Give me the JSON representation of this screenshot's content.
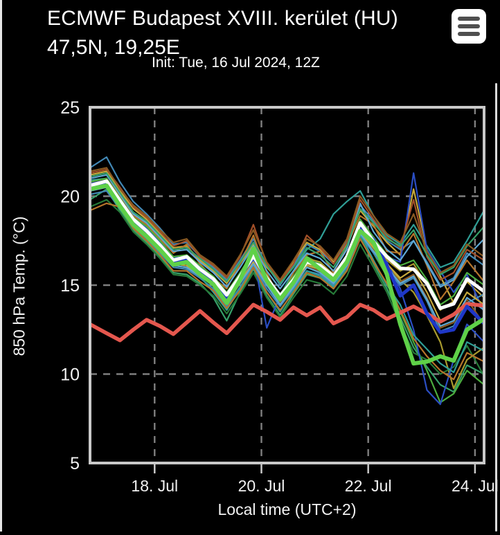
{
  "header": {
    "title_line1": "ECMWF Budapest XVIII. kerület (HU)",
    "title_line2": "47,5N, 19,25E",
    "init_line": "Init: Tue, 16 Jul 2024, 12Z",
    "menu_icon": "hamburger-icon"
  },
  "colors": {
    "background": "#000000",
    "frame": "#c9c9c9",
    "grid": "#7f7f7f",
    "tick_text": "#f2f2f2",
    "mean_white": "#ffffff",
    "control_green": "#5fd148",
    "member_blue_bold": "#1e37c8",
    "climatology_red": "#e4574e",
    "menu_button_bg": "#ffffff",
    "menu_button_bars": "#4f4f4f"
  },
  "chart_data": {
    "type": "line",
    "title": "",
    "xlabel": "Local time (UTC+2)",
    "ylabel": "850 hPa Temp. (°C)",
    "x_unit": "day of July 2024 (local time)",
    "xlim": [
      16.79,
      24.17
    ],
    "ylim": [
      5,
      25
    ],
    "grid": "dashed gray on black, legend none",
    "x_ticks": [
      {
        "value": 18,
        "label": "18. Jul"
      },
      {
        "value": 20,
        "label": "20. Jul"
      },
      {
        "value": 22,
        "label": "22. Jul"
      },
      {
        "value": 24,
        "label": "24. Jul"
      }
    ],
    "y_ticks": [
      25,
      20,
      15,
      10,
      5
    ],
    "x": [
      16.79,
      17.1,
      17.35,
      17.6,
      17.85,
      18.1,
      18.35,
      18.6,
      18.85,
      19.1,
      19.35,
      19.6,
      19.85,
      20.1,
      20.35,
      20.6,
      20.85,
      21.1,
      21.35,
      21.6,
      21.85,
      22.1,
      22.35,
      22.6,
      22.85,
      23.1,
      23.35,
      23.6,
      23.85,
      24.17
    ],
    "series": [
      {
        "name": "climatology-line",
        "color": "#e4574e",
        "width": 5.5,
        "values": [
          12.8,
          12.3,
          11.9,
          12.5,
          13.05,
          12.7,
          12.25,
          12.9,
          13.55,
          12.9,
          12.3,
          13.1,
          13.9,
          13.5,
          13.05,
          13.75,
          13.3,
          13.75,
          12.85,
          13.2,
          13.9,
          13.6,
          13.1,
          13.45,
          13.8,
          13.4,
          12.95,
          13.35,
          13.95,
          13.85
        ]
      },
      {
        "name": "secondary-member-line",
        "color": "#1e37c8",
        "width": 5,
        "values": [
          20.5,
          20.7,
          19.55,
          18.55,
          17.9,
          17.1,
          16.3,
          16.45,
          15.75,
          15.2,
          14.25,
          15.4,
          16.8,
          15.3,
          14.3,
          15.2,
          16.4,
          16.0,
          15.4,
          16.45,
          18.2,
          17.55,
          16.1,
          14.4,
          15.0,
          13.4,
          12.35,
          12.5,
          13.8,
          12.85
        ]
      },
      {
        "name": "ensemble-mean-line",
        "color": "#ffffff",
        "width": 5,
        "values": [
          20.6,
          20.85,
          19.75,
          18.7,
          18.05,
          17.25,
          16.4,
          16.6,
          15.9,
          15.35,
          14.45,
          15.5,
          16.65,
          15.4,
          14.4,
          15.3,
          16.3,
          16.1,
          15.5,
          16.6,
          18.5,
          17.45,
          16.6,
          15.95,
          15.9,
          15.1,
          13.7,
          13.95,
          15.35,
          14.65
        ]
      },
      {
        "name": "control-run-line",
        "color": "#5fd148",
        "width": 6,
        "values": [
          20.4,
          20.6,
          19.45,
          18.4,
          17.75,
          17.0,
          16.15,
          16.3,
          15.6,
          15.05,
          14.0,
          15.3,
          17.05,
          15.25,
          14.2,
          15.15,
          16.5,
          15.9,
          15.3,
          16.3,
          18.05,
          17.4,
          15.6,
          12.8,
          10.6,
          10.7,
          11.0,
          10.75,
          12.5,
          13.1
        ]
      }
    ],
    "ensemble_members": [
      {
        "color": "#4288b5",
        "values": [
          21.6,
          22.2,
          20.8,
          19.7,
          19.0,
          18.2,
          17.3,
          17.4,
          16.6,
          16.0,
          15.3,
          16.4,
          17.6,
          16.1,
          15.0,
          16.1,
          17.3,
          16.9,
          16.2,
          17.5,
          19.5,
          18.6,
          17.5,
          17.0,
          17.5,
          16.3,
          15.0,
          15.4,
          16.8,
          16.1
        ]
      },
      {
        "color": "#2f9e96",
        "values": [
          20.9,
          21.0,
          19.9,
          18.8,
          18.2,
          17.4,
          16.5,
          16.5,
          16.0,
          15.4,
          14.4,
          15.6,
          16.8,
          15.5,
          14.4,
          15.8,
          17.0,
          17.6,
          19.0,
          19.7,
          20.3,
          18.9,
          17.8,
          17.3,
          18.4,
          17.2,
          16.0,
          16.3,
          17.5,
          19.2
        ]
      },
      {
        "color": "#36a069",
        "values": [
          19.8,
          20.4,
          19.2,
          18.1,
          17.4,
          16.6,
          15.7,
          15.6,
          15.1,
          14.3,
          13.0,
          14.6,
          15.9,
          14.4,
          13.3,
          14.5,
          15.6,
          15.4,
          14.8,
          15.9,
          17.7,
          16.2,
          14.8,
          13.2,
          11.5,
          10.4,
          9.4,
          9.0,
          10.5,
          10.0
        ]
      },
      {
        "color": "#a89a2e",
        "values": [
          20.5,
          20.7,
          19.7,
          18.6,
          18.0,
          17.2,
          16.3,
          16.3,
          15.8,
          15.2,
          14.2,
          15.3,
          16.5,
          15.2,
          14.2,
          15.1,
          16.2,
          15.9,
          15.3,
          16.4,
          18.2,
          17.2,
          16.1,
          15.3,
          14.6,
          13.3,
          11.8,
          9.2,
          10.8,
          11.5
        ]
      },
      {
        "color": "#c6a93c",
        "values": [
          21.2,
          21.4,
          20.3,
          19.3,
          18.7,
          17.9,
          17.1,
          17.2,
          16.4,
          15.8,
          15.1,
          16.2,
          17.3,
          16.0,
          15.2,
          16.3,
          17.4,
          17.0,
          16.3,
          17.3,
          19.2,
          18.3,
          17.4,
          16.7,
          20.4,
          17.0,
          15.5,
          14.0,
          15.2,
          14.3
        ]
      },
      {
        "color": "#b5742b",
        "values": [
          20.8,
          21.0,
          20.0,
          18.9,
          18.4,
          17.6,
          16.8,
          17.3,
          16.2,
          15.4,
          14.8,
          16.2,
          17.8,
          15.7,
          14.2,
          15.7,
          16.7,
          16.9,
          15.7,
          17.2,
          18.9,
          18.4,
          16.9,
          16.8,
          17.9,
          16.1,
          14.2,
          15.2,
          16.4,
          15.2
        ]
      },
      {
        "color": "#8a5a22",
        "values": [
          20.3,
          20.5,
          19.5,
          18.5,
          17.8,
          17.0,
          16.2,
          16.1,
          15.6,
          15.0,
          14.0,
          15.1,
          16.3,
          15.0,
          14.0,
          15.0,
          16.0,
          15.8,
          15.2,
          16.2,
          18.0,
          17.0,
          16.0,
          15.2,
          15.6,
          14.3,
          12.6,
          12.9,
          14.2,
          12.8
        ]
      },
      {
        "color": "#4cae3f",
        "values": [
          20.6,
          20.8,
          19.8,
          18.7,
          18.1,
          17.3,
          16.4,
          16.4,
          15.9,
          15.3,
          14.3,
          15.4,
          16.6,
          15.3,
          14.3,
          15.3,
          16.4,
          16.1,
          15.5,
          16.5,
          18.3,
          16.8,
          15.5,
          13.5,
          11.8,
          10.2,
          8.4,
          8.9,
          10.2,
          9.4
        ]
      },
      {
        "color": "#267a38",
        "values": [
          19.4,
          19.8,
          19.1,
          18.0,
          17.3,
          16.5,
          15.6,
          15.5,
          15.0,
          14.4,
          13.4,
          14.5,
          15.7,
          14.3,
          13.2,
          14.3,
          15.3,
          15.1,
          14.5,
          15.5,
          17.3,
          16.0,
          14.6,
          12.8,
          11.2,
          10.8,
          10.0,
          10.4,
          11.6,
          9.9
        ]
      },
      {
        "color": "#2b4ec4",
        "values": [
          20.7,
          20.9,
          19.9,
          18.8,
          18.2,
          17.4,
          16.6,
          16.5,
          16.0,
          15.4,
          14.5,
          15.6,
          16.7,
          12.6,
          14.4,
          15.4,
          16.5,
          16.2,
          15.6,
          16.6,
          18.6,
          17.7,
          16.6,
          16.3,
          21.3,
          17.0,
          15.8,
          14.6,
          15.6,
          13.5
        ]
      },
      {
        "color": "#2b4ec4",
        "values": [
          20.4,
          20.6,
          19.6,
          18.6,
          17.9,
          17.1,
          16.3,
          16.2,
          15.7,
          15.1,
          14.1,
          15.2,
          16.4,
          15.1,
          14.1,
          15.1,
          16.1,
          15.9,
          15.3,
          16.3,
          18.1,
          17.3,
          16.3,
          14.8,
          12.5,
          9.1,
          8.3,
          10.8,
          12.8,
          11.8
        ]
      },
      {
        "color": "#5fa8d3",
        "values": [
          21.0,
          21.2,
          20.1,
          19.0,
          18.5,
          17.7,
          16.9,
          17.0,
          16.3,
          15.7,
          14.9,
          16.0,
          17.2,
          15.8,
          14.8,
          15.8,
          16.8,
          16.5,
          15.8,
          17.0,
          19.6,
          18.0,
          17.0,
          16.4,
          17.5,
          16.2,
          14.9,
          15.3,
          16.6,
          17.6
        ]
      },
      {
        "color": "#a34f28",
        "values": [
          21.3,
          21.5,
          20.5,
          19.4,
          18.8,
          18.0,
          17.2,
          17.5,
          16.6,
          16.1,
          15.4,
          16.6,
          18.4,
          16.2,
          15.2,
          16.2,
          17.8,
          17.1,
          16.2,
          17.4,
          19.8,
          18.7,
          17.7,
          17.1,
          19.8,
          16.6,
          15.3,
          15.7,
          17.0,
          16.4
        ]
      },
      {
        "color": "#4288b5",
        "values": [
          20.1,
          20.3,
          19.3,
          18.3,
          17.6,
          16.8,
          16.0,
          15.9,
          15.4,
          14.8,
          13.8,
          14.9,
          16.1,
          14.8,
          13.8,
          14.8,
          15.8,
          15.6,
          15.0,
          16.0,
          17.8,
          16.8,
          15.8,
          15.0,
          15.4,
          14.1,
          12.4,
          12.7,
          14.0,
          14.5
        ]
      },
      {
        "color": "#2f9e96",
        "values": [
          20.5,
          20.6,
          19.4,
          18.3,
          17.7,
          16.9,
          16.1,
          16.0,
          15.5,
          14.6,
          13.6,
          14.8,
          16.0,
          14.6,
          13.5,
          14.7,
          15.8,
          15.5,
          14.9,
          16.1,
          17.9,
          16.4,
          15.0,
          13.9,
          12.2,
          11.4,
          10.6,
          10.1,
          11.8,
          11.3
        ]
      },
      {
        "color": "#c6a93c",
        "values": [
          20.4,
          20.6,
          19.6,
          18.4,
          17.8,
          17.0,
          16.2,
          16.1,
          15.6,
          15.0,
          14.1,
          15.2,
          16.3,
          15.1,
          14.1,
          15.0,
          16.1,
          15.9,
          15.2,
          16.2,
          18.0,
          17.1,
          16.2,
          15.4,
          15.9,
          14.6,
          13.0,
          13.3,
          14.6,
          13.9
        ]
      },
      {
        "color": "#4cae3f",
        "values": [
          20.8,
          21.0,
          19.9,
          18.8,
          18.3,
          17.5,
          16.6,
          16.7,
          16.1,
          15.5,
          14.6,
          15.7,
          16.9,
          15.5,
          14.5,
          15.5,
          16.6,
          16.2,
          15.6,
          16.7,
          18.7,
          17.7,
          16.7,
          16.1,
          16.4,
          15.3,
          13.9,
          14.4,
          15.7,
          15.0
        ]
      },
      {
        "color": "#b5742b",
        "values": [
          19.2,
          19.6,
          19.4,
          18.2,
          17.5,
          16.7,
          15.8,
          15.8,
          15.2,
          14.7,
          13.7,
          14.7,
          16.0,
          14.6,
          13.6,
          14.6,
          15.7,
          15.4,
          14.8,
          15.8,
          17.6,
          16.3,
          15.1,
          13.6,
          12.0,
          11.0,
          10.2,
          9.7,
          11.2,
          10.7
        ]
      },
      {
        "color": "#36a069",
        "values": [
          21.1,
          21.3,
          20.2,
          19.1,
          18.6,
          17.8,
          17.0,
          17.1,
          16.5,
          15.9,
          15.2,
          16.3,
          17.4,
          16.1,
          15.1,
          16.0,
          17.1,
          16.7,
          16.0,
          17.2,
          19.3,
          18.5,
          17.6,
          17.2,
          18.1,
          16.7,
          15.6,
          16.0,
          17.2,
          18.3
        ]
      },
      {
        "color": "#a89a2e",
        "values": [
          20.6,
          20.8,
          19.6,
          18.5,
          17.9,
          17.1,
          16.4,
          16.6,
          15.9,
          15.3,
          14.4,
          15.5,
          16.7,
          15.4,
          14.4,
          15.4,
          16.5,
          16.3,
          15.6,
          16.6,
          18.4,
          17.4,
          16.4,
          15.8,
          16.2,
          15.0,
          13.6,
          14.1,
          15.4,
          14.7
        ]
      },
      {
        "color": "#8a5a22",
        "values": [
          21.4,
          21.6,
          20.4,
          19.5,
          18.9,
          18.1,
          17.4,
          17.6,
          16.7,
          16.2,
          15.5,
          16.7,
          18.1,
          16.3,
          15.3,
          16.4,
          17.6,
          17.2,
          16.4,
          17.6,
          20.0,
          18.9,
          17.9,
          17.4,
          19.0,
          16.9,
          15.7,
          16.1,
          17.3,
          16.6
        ]
      },
      {
        "color": "#5fa8d3",
        "values": [
          20.3,
          20.5,
          19.5,
          18.4,
          17.7,
          17.0,
          16.1,
          16.0,
          15.5,
          15.0,
          14.0,
          15.1,
          16.2,
          15.0,
          13.9,
          14.9,
          16.0,
          15.7,
          15.1,
          16.1,
          17.9,
          16.9,
          16.0,
          15.1,
          15.5,
          14.2,
          12.7,
          13.0,
          14.3,
          13.6
        ]
      }
    ]
  }
}
